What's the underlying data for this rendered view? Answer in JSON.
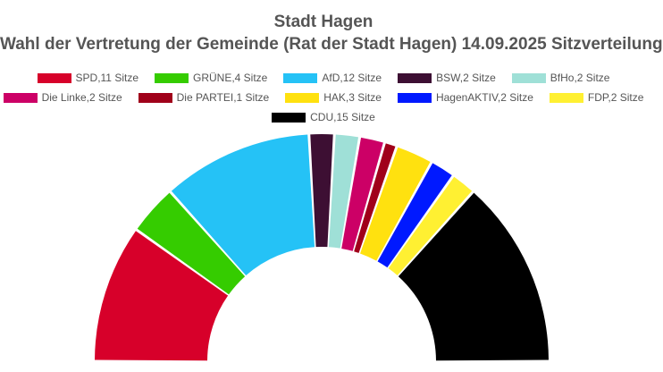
{
  "chart_data": {
    "type": "pie",
    "subtype": "half-donut (seat distribution)",
    "title": "Stadt Hagen",
    "subtitle": "Wahl der Vertretung der Gemeinde (Rat der Stadt Hagen) 14.09.2025 Sitzverteilung",
    "legend_position": "top",
    "slices": [
      {
        "name": "SPD",
        "label": "SPD,11 Sitze",
        "value": 11,
        "color": "#d7002a"
      },
      {
        "name": "GRÜNE",
        "label": "GRÜNE,4 Sitze",
        "value": 4,
        "color": "#35cc00"
      },
      {
        "name": "AfD",
        "label": "AfD,12 Sitze",
        "value": 12,
        "color": "#25c2f6"
      },
      {
        "name": "BSW",
        "label": "BSW,2 Sitze",
        "value": 2,
        "color": "#3d0f33"
      },
      {
        "name": "BfHo",
        "label": "BfHo,2 Sitze",
        "value": 2,
        "color": "#9fe0d7"
      },
      {
        "name": "Die Linke",
        "label": "Die Linke,2 Sitze",
        "value": 2,
        "color": "#cc0066"
      },
      {
        "name": "Die PARTEI",
        "label": "Die PARTEI,1 Sitze",
        "value": 1,
        "color": "#a0001a"
      },
      {
        "name": "HAK",
        "label": "HAK,3 Sitze",
        "value": 3,
        "color": "#ffe10f"
      },
      {
        "name": "HagenAKTIV",
        "label": "HagenAKTIV,2 Sitze",
        "value": 2,
        "color": "#0019ff"
      },
      {
        "name": "FDP",
        "label": "FDP,2 Sitze",
        "value": 2,
        "color": "#fff032"
      },
      {
        "name": "CDU",
        "label": "CDU,15 Sitze",
        "value": 15,
        "color": "#000000"
      }
    ]
  }
}
